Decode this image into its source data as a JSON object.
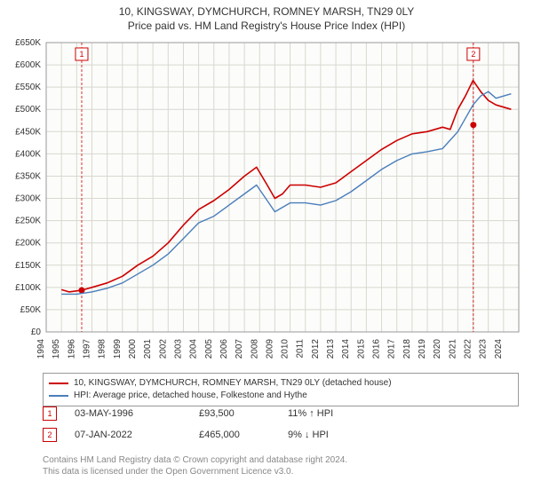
{
  "title": {
    "line1": "10, KINGSWAY, DYMCHURCH, ROMNEY MARSH, TN29 0LY",
    "line2": "Price paid vs. HM Land Registry's House Price Index (HPI)"
  },
  "chart": {
    "type": "line",
    "background_color": "#fcfcfa",
    "grid_color": "#d8d8d0",
    "axis_color": "#333333",
    "tick_font_size": 10,
    "x_years": [
      1994,
      1995,
      1996,
      1997,
      1998,
      1999,
      2000,
      2001,
      2002,
      2003,
      2004,
      2005,
      2006,
      2007,
      2008,
      2009,
      2010,
      2011,
      2012,
      2013,
      2014,
      2015,
      2016,
      2017,
      2018,
      2019,
      2020,
      2021,
      2022,
      2023,
      2024
    ],
    "x_range": [
      1994,
      2025
    ],
    "y_range": [
      0,
      650
    ],
    "y_ticks": [
      0,
      50,
      100,
      150,
      200,
      250,
      300,
      350,
      400,
      450,
      500,
      550,
      600,
      650
    ],
    "y_tick_labels": [
      "£0",
      "£50K",
      "£100K",
      "£150K",
      "£200K",
      "£250K",
      "£300K",
      "£350K",
      "£400K",
      "£450K",
      "£500K",
      "£550K",
      "£600K",
      "£650K"
    ],
    "series": [
      {
        "name": "property",
        "label": "10, KINGSWAY, DYMCHURCH, ROMNEY MARSH, TN29 0LY (detached house)",
        "color": "#cc0000",
        "line_width": 1.6,
        "data": [
          [
            1995.0,
            95
          ],
          [
            1995.5,
            90
          ],
          [
            1996.3,
            93.5
          ],
          [
            1997.0,
            100
          ],
          [
            1998.0,
            110
          ],
          [
            1999.0,
            125
          ],
          [
            2000.0,
            150
          ],
          [
            2001.0,
            170
          ],
          [
            2002.0,
            200
          ],
          [
            2003.0,
            240
          ],
          [
            2004.0,
            275
          ],
          [
            2005.0,
            295
          ],
          [
            2006.0,
            320
          ],
          [
            2007.0,
            350
          ],
          [
            2007.8,
            370
          ],
          [
            2008.5,
            330
          ],
          [
            2009.0,
            300
          ],
          [
            2009.5,
            310
          ],
          [
            2010.0,
            330
          ],
          [
            2011.0,
            330
          ],
          [
            2012.0,
            325
          ],
          [
            2013.0,
            335
          ],
          [
            2014.0,
            360
          ],
          [
            2015.0,
            385
          ],
          [
            2016.0,
            410
          ],
          [
            2017.0,
            430
          ],
          [
            2018.0,
            445
          ],
          [
            2019.0,
            450
          ],
          [
            2020.0,
            460
          ],
          [
            2020.5,
            455
          ],
          [
            2021.0,
            500
          ],
          [
            2021.5,
            530
          ],
          [
            2022.0,
            565
          ],
          [
            2022.5,
            540
          ],
          [
            2023.0,
            520
          ],
          [
            2023.5,
            510
          ],
          [
            2024.0,
            505
          ],
          [
            2024.5,
            500
          ]
        ]
      },
      {
        "name": "hpi",
        "label": "HPI: Average price, detached house, Folkestone and Hythe",
        "color": "#4a7ebb",
        "line_width": 1.4,
        "data": [
          [
            1995.0,
            85
          ],
          [
            1996.0,
            85
          ],
          [
            1997.0,
            90
          ],
          [
            1998.0,
            98
          ],
          [
            1999.0,
            110
          ],
          [
            2000.0,
            130
          ],
          [
            2001.0,
            150
          ],
          [
            2002.0,
            175
          ],
          [
            2003.0,
            210
          ],
          [
            2004.0,
            245
          ],
          [
            2005.0,
            260
          ],
          [
            2006.0,
            285
          ],
          [
            2007.0,
            310
          ],
          [
            2007.8,
            330
          ],
          [
            2008.5,
            295
          ],
          [
            2009.0,
            270
          ],
          [
            2010.0,
            290
          ],
          [
            2011.0,
            290
          ],
          [
            2012.0,
            285
          ],
          [
            2013.0,
            295
          ],
          [
            2014.0,
            315
          ],
          [
            2015.0,
            340
          ],
          [
            2016.0,
            365
          ],
          [
            2017.0,
            385
          ],
          [
            2018.0,
            400
          ],
          [
            2019.0,
            405
          ],
          [
            2020.0,
            412
          ],
          [
            2021.0,
            450
          ],
          [
            2021.5,
            480
          ],
          [
            2022.0,
            510
          ],
          [
            2022.5,
            530
          ],
          [
            2023.0,
            540
          ],
          [
            2023.5,
            525
          ],
          [
            2024.0,
            530
          ],
          [
            2024.5,
            535
          ]
        ]
      }
    ],
    "sale_markers": [
      {
        "n": "1",
        "year": 1996.33,
        "price": 93.5,
        "dot_color": "#cc0000",
        "line_color": "#cc0000"
      },
      {
        "n": "2",
        "year": 2022.02,
        "price": 465,
        "dot_color": "#cc0000",
        "line_color": "#cc0000"
      }
    ]
  },
  "legend": {
    "items": [
      {
        "color": "#cc0000",
        "label": "10, KINGSWAY, DYMCHURCH, ROMNEY MARSH, TN29 0LY (detached house)"
      },
      {
        "color": "#4a7ebb",
        "label": "HPI: Average price, detached house, Folkestone and Hythe"
      }
    ]
  },
  "sales": [
    {
      "n": "1",
      "color": "#cc0000",
      "date": "03-MAY-1996",
      "price": "£93,500",
      "delta": "11% ↑ HPI"
    },
    {
      "n": "2",
      "color": "#cc0000",
      "date": "07-JAN-2022",
      "price": "£465,000",
      "delta": "9% ↓ HPI"
    }
  ],
  "footer": {
    "line1": "Contains HM Land Registry data © Crown copyright and database right 2024.",
    "line2": "This data is licensed under the Open Government Licence v3.0."
  }
}
